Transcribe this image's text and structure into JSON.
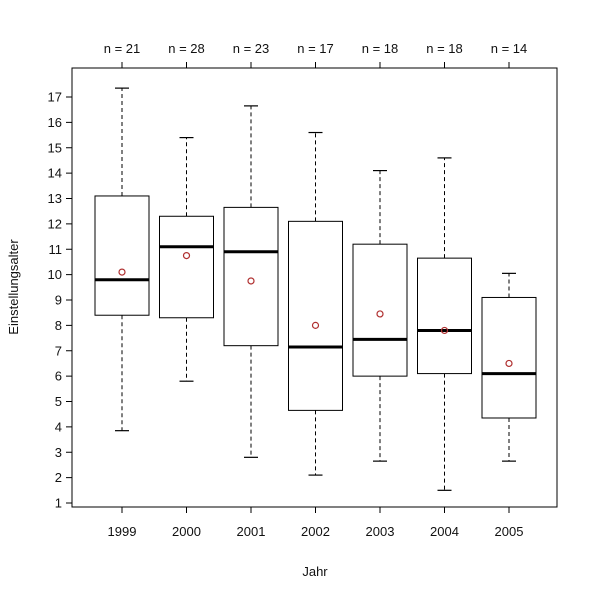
{
  "chart_data": {
    "type": "boxplot",
    "xlabel": "Jahr",
    "ylabel": "Einstellungsalter",
    "ylim": [
      0.5,
      17.8
    ],
    "yticks": [
      "1",
      "2",
      "3",
      "4",
      "5",
      "6",
      "7",
      "8",
      "9",
      "10",
      "11",
      "12",
      "13",
      "14",
      "15",
      "16",
      "17"
    ],
    "categories": [
      "1999",
      "2000",
      "2001",
      "2002",
      "2003",
      "2004",
      "2005"
    ],
    "counts": [
      "n = 21",
      "n = 28",
      "n = 23",
      "n = 17",
      "n = 18",
      "n = 18",
      "n = 14"
    ],
    "boxes": [
      {
        "min": 3.85,
        "q1": 8.4,
        "median": 9.8,
        "q3": 13.1,
        "max": 17.35,
        "mean": 10.1
      },
      {
        "min": 5.8,
        "q1": 8.3,
        "median": 11.1,
        "q3": 12.3,
        "max": 15.4,
        "mean": 10.75
      },
      {
        "min": 2.8,
        "q1": 7.2,
        "median": 10.9,
        "q3": 12.65,
        "max": 16.65,
        "mean": 9.75
      },
      {
        "min": 2.1,
        "q1": 4.65,
        "median": 7.15,
        "q3": 12.1,
        "max": 15.6,
        "mean": 8.0
      },
      {
        "min": 2.65,
        "q1": 6.0,
        "median": 7.45,
        "q3": 11.2,
        "max": 14.1,
        "mean": 8.45
      },
      {
        "min": 1.5,
        "q1": 6.1,
        "median": 7.8,
        "q3": 10.65,
        "max": 14.6,
        "mean": 7.8
      },
      {
        "min": 2.65,
        "q1": 4.35,
        "median": 6.1,
        "q3": 9.1,
        "max": 10.05,
        "mean": 6.5
      }
    ],
    "colors": {
      "box": "#000000",
      "median": "#000000",
      "mean_marker": "#b03030"
    }
  }
}
